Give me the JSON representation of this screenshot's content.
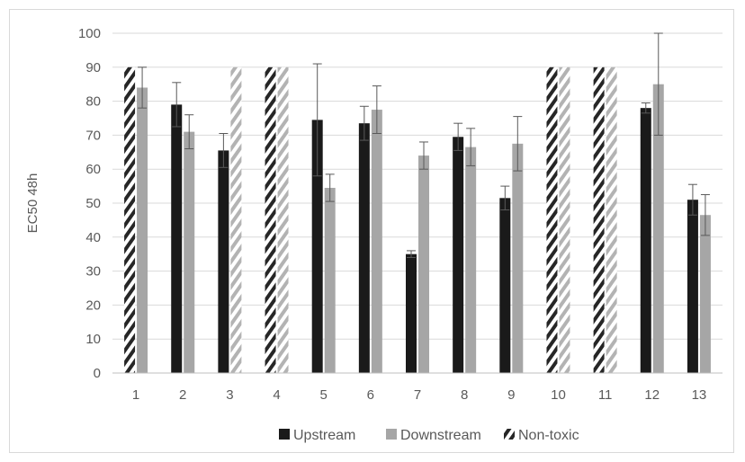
{
  "chart_data": {
    "type": "bar",
    "title": "",
    "xlabel": "",
    "ylabel": "EC50 48h",
    "ylim": [
      0,
      100
    ],
    "yticks": [
      0,
      10,
      20,
      30,
      40,
      50,
      60,
      70,
      80,
      90,
      100
    ],
    "grid": true,
    "legend_position": "bottom",
    "categories": [
      "1",
      "2",
      "3",
      "4",
      "5",
      "6",
      "7",
      "8",
      "9",
      "10",
      "11",
      "12",
      "13"
    ],
    "series": [
      {
        "name": "Upstream",
        "color": "#1a1a1a",
        "values": [
          90,
          79,
          65.5,
          90,
          74.5,
          73.5,
          35,
          69.5,
          51.5,
          90,
          90,
          78,
          51
        ],
        "errors": [
          0,
          6.5,
          5,
          0,
          16.5,
          5,
          1,
          4,
          3.5,
          0,
          0,
          1.5,
          4.5
        ],
        "non_toxic": [
          true,
          false,
          false,
          true,
          false,
          false,
          false,
          false,
          false,
          true,
          true,
          false,
          false
        ]
      },
      {
        "name": "Downstream",
        "color": "#a6a6a6",
        "values": [
          84,
          71,
          90,
          90,
          54.5,
          77.5,
          64,
          66.5,
          67.5,
          90,
          90,
          85,
          46.5
        ],
        "errors": [
          6,
          5,
          0,
          0,
          4,
          7,
          4,
          5.5,
          8,
          0,
          0,
          15,
          6
        ],
        "non_toxic": [
          false,
          false,
          true,
          true,
          false,
          false,
          false,
          false,
          false,
          true,
          true,
          false,
          false
        ]
      }
    ],
    "legend": [
      {
        "label": "Upstream",
        "swatch": "solid-dark"
      },
      {
        "label": "Downstream",
        "swatch": "solid-light"
      },
      {
        "label": "Non-toxic",
        "swatch": "hatched"
      }
    ]
  }
}
